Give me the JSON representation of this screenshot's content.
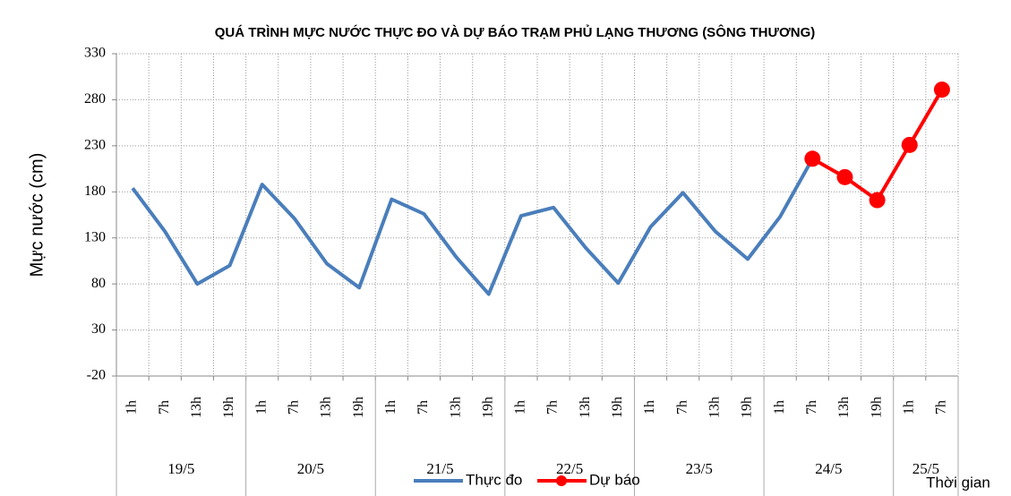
{
  "chart_data": {
    "type": "line",
    "title": "QUÁ TRÌNH MỰC NƯỚC THỰC ĐO VÀ DỰ BÁO TRẠM PHỦ LẠNG THƯƠNG (SÔNG THƯƠNG)",
    "y_label": "Mực nước (cm)",
    "x_label": "Thời gian",
    "categories": [
      "1h",
      "7h",
      "13h",
      "19h",
      "1h",
      "7h",
      "13h",
      "19h",
      "1h",
      "7h",
      "13h",
      "19h",
      "1h",
      "7h",
      "13h",
      "19h",
      "1h",
      "7h",
      "13h",
      "19h",
      "1h",
      "7h",
      "13h",
      "19h",
      "1h",
      "7h"
    ],
    "x_groups": [
      {
        "label": "19/5",
        "size": 4
      },
      {
        "label": "20/5",
        "size": 4
      },
      {
        "label": "21/5",
        "size": 4
      },
      {
        "label": "22/5",
        "size": 4
      },
      {
        "label": "23/5",
        "size": 4
      },
      {
        "label": "24/5",
        "size": 4
      },
      {
        "label": "25/5",
        "size": 2
      }
    ],
    "series": [
      {
        "name": "Thực đo",
        "color": "#4a7ebb",
        "marker": false,
        "values": [
          184,
          137,
          80,
          100,
          188,
          151,
          102,
          76,
          172,
          156,
          109,
          69,
          154,
          163,
          119,
          81,
          142,
          179,
          137,
          107,
          153,
          216,
          null,
          null,
          null,
          null
        ]
      },
      {
        "name": "Dự báo",
        "color": "#ff0000",
        "marker": true,
        "values": [
          null,
          null,
          null,
          null,
          null,
          null,
          null,
          null,
          null,
          null,
          null,
          null,
          null,
          null,
          null,
          null,
          null,
          null,
          null,
          null,
          null,
          216,
          196,
          171,
          231,
          291
        ]
      }
    ],
    "ylim": [
      -20,
      330
    ],
    "yticks": [
      -20,
      30,
      80,
      130,
      180,
      230,
      280,
      330
    ],
    "grid": true,
    "legend": "bottom"
  }
}
